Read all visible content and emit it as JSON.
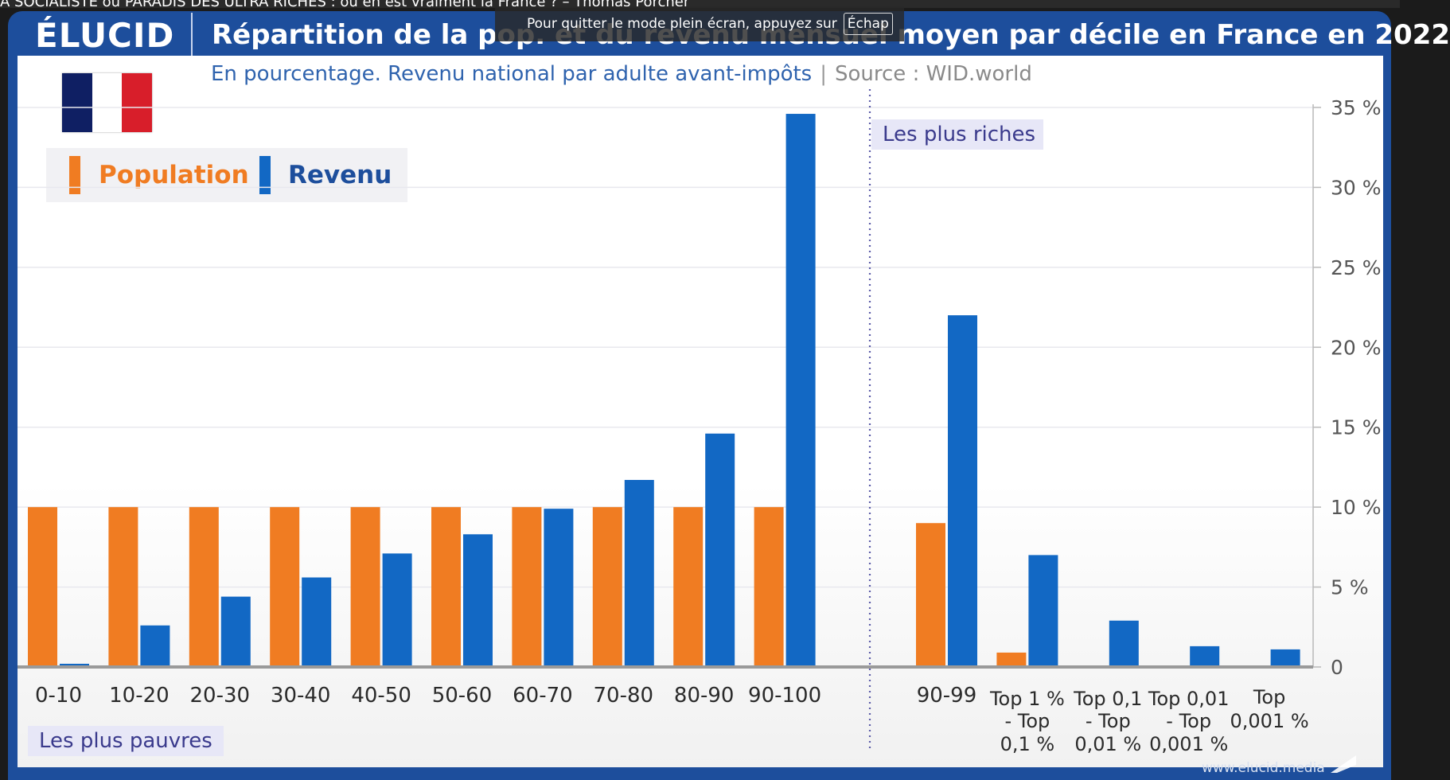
{
  "browser": {
    "top_strip_text": "A SOCIALISTE ou PARADIS DES ULTRA RICHES : où en est vraiment la France ? – Thomas Porcher",
    "fullscreen_notice": "Pour quitter le mode plein écran, appuyez sur",
    "fullscreen_key": "Échap"
  },
  "header": {
    "logo": "ÉLUCID",
    "title": "Répartition de la pop. et du revenu mensuel moyen par décile en France en 2022",
    "subtitle": "En pourcentage. Revenu national par adulte avant-impôts",
    "separator": "|",
    "source": "Source : WID.world"
  },
  "footer": {
    "url": "www.elucid.media"
  },
  "colors": {
    "population": "#f07c22",
    "revenu": "#1268c4",
    "frame": "#1d4e9c",
    "annotation_bg": "#e7e7f7",
    "annotation_text": "#3a3a8c"
  },
  "chart_data": {
    "type": "bar",
    "title": "Répartition de la pop. et du revenu mensuel moyen par décile en France en 2022",
    "ylim": [
      0,
      35
    ],
    "yticks": [
      0,
      5,
      10,
      15,
      20,
      25,
      30,
      35
    ],
    "ytick_labels": [
      "0",
      "5 %",
      "10 %",
      "15 %",
      "20 %",
      "25 %",
      "30 %",
      "35 %"
    ],
    "grid": true,
    "legend_position": "top-left",
    "series": [
      {
        "name": "Population",
        "color": "#f07c22",
        "values": [
          10,
          10,
          10,
          10,
          10,
          10,
          10,
          10,
          10,
          10,
          9,
          0.9,
          0,
          0,
          0
        ]
      },
      {
        "name": "Revenu",
        "color": "#1268c4",
        "values": [
          0.2,
          2.6,
          4.4,
          5.6,
          7.1,
          8.3,
          9.9,
          11.7,
          14.6,
          34.6,
          22,
          7,
          2.9,
          1.3,
          1.1
        ]
      }
    ],
    "categories": [
      {
        "lines": [
          "0-10"
        ]
      },
      {
        "lines": [
          "10-20"
        ]
      },
      {
        "lines": [
          "20-30"
        ]
      },
      {
        "lines": [
          "30-40"
        ]
      },
      {
        "lines": [
          "40-50"
        ]
      },
      {
        "lines": [
          "50-60"
        ]
      },
      {
        "lines": [
          "60-70"
        ]
      },
      {
        "lines": [
          "70-80"
        ]
      },
      {
        "lines": [
          "80-90"
        ]
      },
      {
        "lines": [
          "90-100"
        ]
      },
      {
        "lines": [
          "90-99"
        ]
      },
      {
        "lines": [
          "Top 1 %",
          "- Top",
          "0,1 %"
        ]
      },
      {
        "lines": [
          "Top 0,1",
          "- Top",
          "0,01 %"
        ]
      },
      {
        "lines": [
          "Top 0,01",
          "- Top",
          "0,001 %"
        ]
      },
      {
        "lines": [
          "Top",
          "0,001 %"
        ]
      }
    ],
    "annotations": {
      "poorest": "Les plus pauvres",
      "richest": "Les plus riches"
    }
  }
}
